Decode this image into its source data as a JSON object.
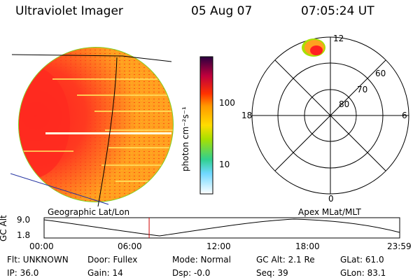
{
  "header": {
    "instrument": "Ultraviolet Imager",
    "date": "05 Aug 07",
    "time": "07:05:24 UT"
  },
  "colorbar": {
    "unit": "photon cm⁻²s⁻¹",
    "labels": [
      "100",
      "10"
    ],
    "stops": [
      "#2a0040",
      "#c0003c",
      "#ff3300",
      "#ff9900",
      "#ffdd00",
      "#a8e000",
      "#30d090",
      "#6fd8ff",
      "#ffffff"
    ]
  },
  "polar": {
    "mlt_labels": {
      "top": "12",
      "left": "18",
      "right": "6",
      "bottom": "0"
    },
    "lat_labels": [
      "60",
      "70",
      "80"
    ]
  },
  "projections": {
    "left": "Geographic Lat/Lon",
    "right": "Apex  MLat/MLT"
  },
  "alt_plot": {
    "axis_label": "GC Alt",
    "y_ticks": [
      "9.0",
      "1.8"
    ],
    "x_ticks": [
      "00:00",
      "06:00",
      "12:00",
      "18:00",
      "23:59"
    ],
    "current_time_hours": 7.09
  },
  "status": {
    "row1": {
      "flt": "Flt: UNKNOWN",
      "door": "Door: Fullex",
      "mode": "Mode: Normal",
      "gcalt": "GC Alt: 2.1 Re",
      "glat": "GLat:  61.0"
    },
    "row2": {
      "ip": "IP: 36.0",
      "gain": "Gain: 14",
      "dsp": "Dsp:   -0.0",
      "seq": "Seq: 39",
      "glon": "GLon:  83.1"
    }
  },
  "colors": {
    "accent_line": "#d00000",
    "earth_fill": "#ffa020"
  }
}
